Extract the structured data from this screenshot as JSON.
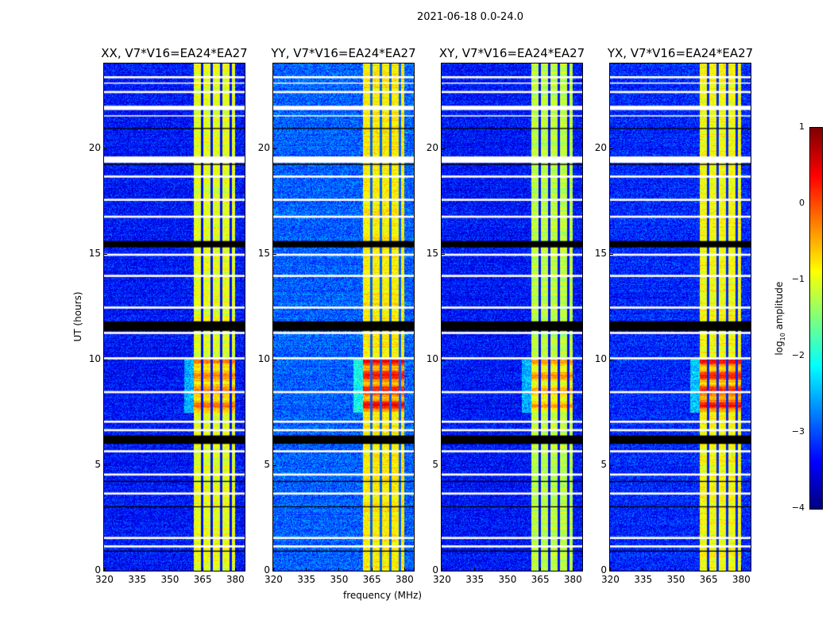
{
  "figure_title": "2021-06-18 0.0-24.0",
  "chart_data": {
    "type": "heatmap",
    "xlabel": "frequency (MHz)",
    "ylabel": "UT (hours)",
    "xlim": [
      320,
      384.4
    ],
    "ylim": [
      0,
      24
    ],
    "xticks": [
      320,
      335,
      350,
      365,
      380
    ],
    "yticks": [
      0,
      5,
      10,
      15,
      20
    ],
    "colorbar": {
      "label_main": "log",
      "label_sub": "10",
      "label_rest": " amplitude",
      "range": [
        -4,
        1
      ],
      "ticks": [
        1,
        0,
        -1,
        -2,
        -3,
        -4
      ],
      "colormap": "jet"
    },
    "active_band_mhz": [
      361,
      380
    ],
    "band_gaps_mhz": [
      364.8,
      369.2,
      373.6,
      378.0
    ],
    "flagged_hours_white": [
      [
        23.3,
        23.4
      ],
      [
        23.05,
        23.1
      ],
      [
        22.6,
        22.7
      ],
      [
        21.8,
        22.0
      ],
      [
        21.5,
        21.55
      ],
      [
        19.3,
        19.6
      ],
      [
        18.6,
        18.7
      ],
      [
        17.5,
        17.6
      ],
      [
        16.7,
        16.8
      ],
      [
        14.9,
        15.0
      ],
      [
        13.9,
        14.0
      ],
      [
        12.4,
        12.5
      ],
      [
        11.2,
        11.3
      ],
      [
        10.0,
        10.1
      ],
      [
        8.4,
        8.5
      ],
      [
        7.0,
        7.1
      ],
      [
        6.6,
        6.7
      ],
      [
        5.6,
        5.7
      ],
      [
        4.5,
        4.6
      ],
      [
        3.6,
        3.7
      ],
      [
        1.5,
        1.6
      ],
      [
        1.1,
        1.2
      ]
    ],
    "flagged_hours_black": [
      [
        15.3,
        15.6
      ],
      [
        11.35,
        11.8
      ],
      [
        6.0,
        6.4
      ],
      [
        20.9,
        20.95
      ],
      [
        19.2,
        19.25
      ],
      [
        4.2,
        4.25
      ],
      [
        3.0,
        3.05
      ],
      [
        0.9,
        0.95
      ]
    ],
    "panels": [
      {
        "title": "XX, V7*V16=EA24*EA27",
        "background_log": -3.3,
        "band_log": -1.0,
        "peak_log": -0.2
      },
      {
        "title": "YY, V7*V16=EA24*EA27",
        "background_log": -2.9,
        "band_log": -0.8,
        "peak_log": 0.4
      },
      {
        "title": "XY, V7*V16=EA24*EA27",
        "background_log": -3.3,
        "band_log": -1.2,
        "peak_log": -0.4
      },
      {
        "title": "YX, V7*V16=EA24*EA27",
        "background_log": -3.2,
        "band_log": -0.9,
        "peak_log": 0.3
      }
    ]
  }
}
